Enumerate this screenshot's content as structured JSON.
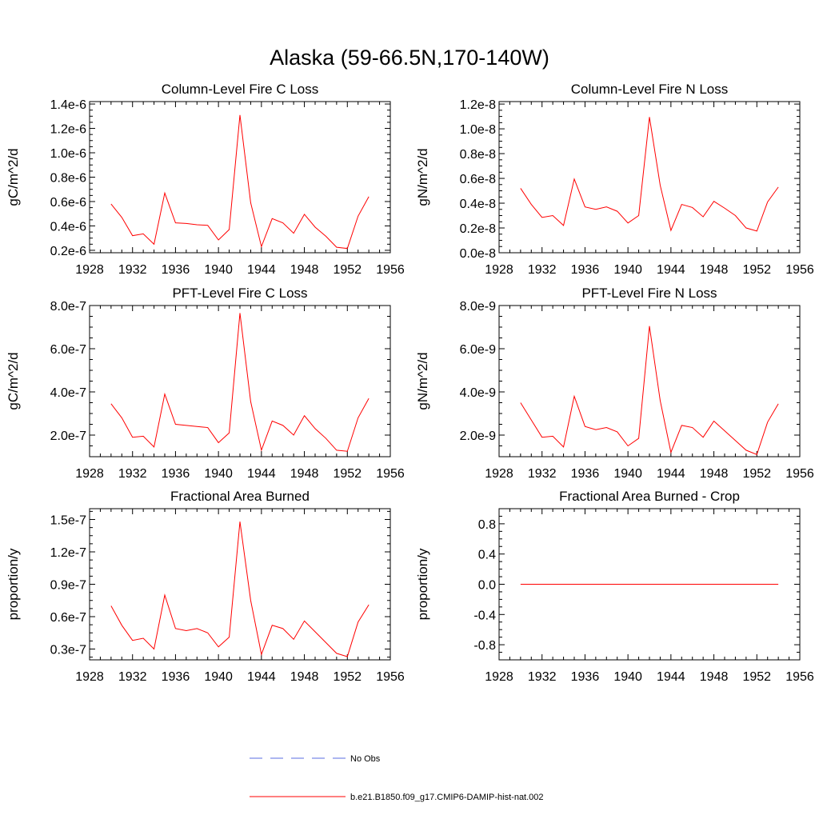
{
  "figure": {
    "title": "Alaska (59-66.5N,170-140W)",
    "legend": [
      {
        "label": "No Obs",
        "color": "#5a6ee0",
        "dash": "dashed"
      },
      {
        "label": "b.e21.B1850.f09_g17.CMIP6-DAMIP-hist-nat.002",
        "color": "#ff0000",
        "dash": "solid"
      }
    ]
  },
  "chart_data": [
    {
      "type": "line",
      "title": "Column-Level Fire C Loss",
      "xlabel": "",
      "ylabel": "gC/m^2/d",
      "xlim": [
        1928,
        1956
      ],
      "ylim": [
        0.18,
        1.42
      ],
      "x_ticks": [
        1928,
        1932,
        1936,
        1940,
        1944,
        1948,
        1952,
        1956
      ],
      "y_ticks": [
        0.2,
        0.4,
        0.6,
        0.8,
        1.0,
        1.2,
        1.4
      ],
      "y_tick_labels": [
        "0.2e-6",
        "0.4e-6",
        "0.6e-6",
        "0.8e-6",
        "1.0e-6",
        "1.2e-6",
        "1.4e-6"
      ],
      "x": [
        1930,
        1931,
        1932,
        1933,
        1934,
        1935,
        1936,
        1937,
        1938,
        1939,
        1940,
        1941,
        1942,
        1943,
        1944,
        1945,
        1946,
        1947,
        1948,
        1949,
        1950,
        1951,
        1952,
        1953,
        1954
      ],
      "series": [
        {
          "color": "#ff0000",
          "values": [
            0.58,
            0.47,
            0.32,
            0.335,
            0.25,
            0.67,
            0.425,
            0.42,
            0.41,
            0.405,
            0.285,
            0.37,
            1.31,
            0.59,
            0.23,
            0.46,
            0.425,
            0.34,
            0.495,
            0.39,
            0.315,
            0.225,
            0.215,
            0.48,
            0.64
          ]
        }
      ]
    },
    {
      "type": "line",
      "title": "Column-Level Fire N Loss",
      "xlabel": "",
      "ylabel": "gN/m^2/d",
      "xlim": [
        1928,
        1956
      ],
      "ylim": [
        0.0,
        1.22
      ],
      "x_ticks": [
        1928,
        1932,
        1936,
        1940,
        1944,
        1948,
        1952,
        1956
      ],
      "y_ticks": [
        0.0,
        0.2,
        0.4,
        0.6,
        0.8,
        1.0,
        1.2
      ],
      "y_tick_labels": [
        "0.0e-8",
        "0.2e-8",
        "0.4e-8",
        "0.6e-8",
        "0.8e-8",
        "1.0e-8",
        "1.2e-8"
      ],
      "x": [
        1930,
        1931,
        1932,
        1933,
        1934,
        1935,
        1936,
        1937,
        1938,
        1939,
        1940,
        1941,
        1942,
        1943,
        1944,
        1945,
        1946,
        1947,
        1948,
        1949,
        1950,
        1951,
        1952,
        1953,
        1954
      ],
      "series": [
        {
          "color": "#ff0000",
          "values": [
            0.52,
            0.39,
            0.285,
            0.3,
            0.22,
            0.595,
            0.37,
            0.35,
            0.37,
            0.335,
            0.24,
            0.3,
            1.095,
            0.545,
            0.18,
            0.39,
            0.365,
            0.29,
            0.415,
            0.36,
            0.3,
            0.2,
            0.175,
            0.41,
            0.53
          ]
        }
      ]
    },
    {
      "type": "line",
      "title": "PFT-Level Fire C Loss",
      "xlabel": "",
      "ylabel": "gC/m^2/d",
      "xlim": [
        1928,
        1956
      ],
      "ylim": [
        1.0,
        8.0
      ],
      "x_ticks": [
        1928,
        1932,
        1936,
        1940,
        1944,
        1948,
        1952,
        1956
      ],
      "y_ticks": [
        2.0,
        4.0,
        6.0,
        8.0
      ],
      "y_tick_labels": [
        "2.0e-7",
        "4.0e-7",
        "6.0e-7",
        "8.0e-7"
      ],
      "x": [
        1930,
        1931,
        1932,
        1933,
        1934,
        1935,
        1936,
        1937,
        1938,
        1939,
        1940,
        1941,
        1942,
        1943,
        1944,
        1945,
        1946,
        1947,
        1948,
        1949,
        1950,
        1951,
        1952,
        1953,
        1954
      ],
      "series": [
        {
          "color": "#ff0000",
          "values": [
            3.45,
            2.8,
            1.9,
            1.95,
            1.45,
            3.9,
            2.5,
            2.45,
            2.4,
            2.35,
            1.65,
            2.1,
            7.65,
            3.55,
            1.3,
            2.65,
            2.45,
            2.0,
            2.9,
            2.3,
            1.85,
            1.3,
            1.25,
            2.8,
            3.7
          ]
        }
      ]
    },
    {
      "type": "line",
      "title": "PFT-Level Fire N Loss",
      "xlabel": "",
      "ylabel": "gN/m^2/d",
      "xlim": [
        1928,
        1956
      ],
      "ylim": [
        1.0,
        8.0
      ],
      "x_ticks": [
        1928,
        1932,
        1936,
        1940,
        1944,
        1948,
        1952,
        1956
      ],
      "y_ticks": [
        2.0,
        4.0,
        6.0,
        8.0
      ],
      "y_tick_labels": [
        "2.0e-9",
        "4.0e-9",
        "6.0e-9",
        "8.0e-9"
      ],
      "x": [
        1930,
        1931,
        1932,
        1933,
        1934,
        1935,
        1936,
        1937,
        1938,
        1939,
        1940,
        1941,
        1942,
        1943,
        1944,
        1945,
        1946,
        1947,
        1948,
        1949,
        1950,
        1951,
        1952,
        1953,
        1954
      ],
      "series": [
        {
          "color": "#ff0000",
          "values": [
            3.5,
            2.7,
            1.9,
            1.95,
            1.45,
            3.8,
            2.4,
            2.25,
            2.35,
            2.15,
            1.5,
            1.85,
            7.05,
            3.6,
            1.2,
            2.45,
            2.35,
            1.9,
            2.65,
            2.2,
            1.75,
            1.3,
            1.1,
            2.6,
            3.45
          ]
        }
      ]
    },
    {
      "type": "line",
      "title": "Fractional Area Burned",
      "xlabel": "",
      "ylabel": "proportion/y",
      "xlim": [
        1928,
        1956
      ],
      "ylim": [
        0.2,
        1.6
      ],
      "x_ticks": [
        1928,
        1932,
        1936,
        1940,
        1944,
        1948,
        1952,
        1956
      ],
      "y_ticks": [
        0.3,
        0.6,
        0.9,
        1.2,
        1.5
      ],
      "y_tick_labels": [
        "0.3e-7",
        "0.6e-7",
        "0.9e-7",
        "1.2e-7",
        "1.5e-7"
      ],
      "x": [
        1930,
        1931,
        1932,
        1933,
        1934,
        1935,
        1936,
        1937,
        1938,
        1939,
        1940,
        1941,
        1942,
        1943,
        1944,
        1945,
        1946,
        1947,
        1948,
        1949,
        1950,
        1951,
        1952,
        1953,
        1954
      ],
      "series": [
        {
          "color": "#ff0000",
          "values": [
            0.7,
            0.52,
            0.38,
            0.4,
            0.3,
            0.8,
            0.49,
            0.47,
            0.49,
            0.45,
            0.32,
            0.41,
            1.48,
            0.75,
            0.25,
            0.52,
            0.49,
            0.39,
            0.56,
            0.46,
            0.36,
            0.26,
            0.23,
            0.55,
            0.71
          ]
        }
      ]
    },
    {
      "type": "line",
      "title": "Fractional Area Burned - Crop",
      "xlabel": "",
      "ylabel": "proportion/y",
      "xlim": [
        1928,
        1956
      ],
      "ylim": [
        -1.0,
        1.0
      ],
      "x_ticks": [
        1928,
        1932,
        1936,
        1940,
        1944,
        1948,
        1952,
        1956
      ],
      "y_ticks": [
        -0.8,
        -0.4,
        0.0,
        0.4,
        0.8
      ],
      "y_tick_labels": [
        "-0.8",
        "-0.4",
        "0.0",
        "0.4",
        "0.8"
      ],
      "x": [
        1930,
        1931,
        1932,
        1933,
        1934,
        1935,
        1936,
        1937,
        1938,
        1939,
        1940,
        1941,
        1942,
        1943,
        1944,
        1945,
        1946,
        1947,
        1948,
        1949,
        1950,
        1951,
        1952,
        1953,
        1954
      ],
      "series": [
        {
          "color": "#ff0000",
          "values": [
            0,
            0,
            0,
            0,
            0,
            0,
            0,
            0,
            0,
            0,
            0,
            0,
            0,
            0,
            0,
            0,
            0,
            0,
            0,
            0,
            0,
            0,
            0,
            0,
            0
          ]
        }
      ]
    }
  ]
}
